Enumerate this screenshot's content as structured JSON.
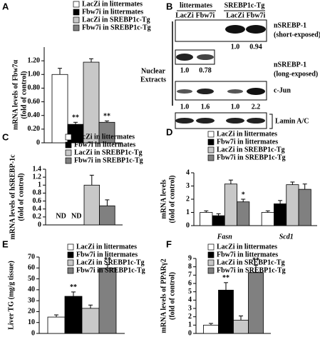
{
  "chart_data": [
    {
      "type": "bar",
      "label": "A",
      "ylabel": [
        "mRNA levels of Fbw7α",
        "(fold of control)"
      ],
      "ylim": [
        0,
        1.4
      ],
      "yticks": [
        0,
        {
          "value": 0.2,
          "label": "0.20"
        },
        {
          "value": 0.4,
          "label": "0.40"
        },
        {
          "value": 0.6,
          "label": "0.60"
        },
        {
          "value": 0.8,
          "label": "0.80"
        },
        {
          "value": 1.0,
          "label": "1.00"
        },
        {
          "value": 1.2,
          "label": "1.20"
        }
      ],
      "series": [
        {
          "name": "LacZi in littermates",
          "color": "#ffffff",
          "values": [
            1.0
          ],
          "errors": [
            0.09
          ]
        },
        {
          "name": "Fbw7i in littermates",
          "color": "#000000",
          "values": [
            0.27
          ],
          "errors": [
            0.03
          ],
          "annotations": [
            "**"
          ]
        },
        {
          "name": "LacZi in SREBP1c-Tg",
          "color": "#c8c8c8",
          "values": [
            1.18
          ],
          "errors": [
            0.05
          ]
        },
        {
          "name": "Fbw7i in SREBP1c-Tg",
          "color": "#808080",
          "values": [
            0.3
          ],
          "errors": [
            0.02
          ],
          "annotations": [
            "**"
          ]
        }
      ]
    },
    {
      "type": "bar",
      "label": "C",
      "ylabel": [
        "mRNA levels of hSREBP-1c",
        "(fold of control)"
      ],
      "ylim": [
        0,
        1.4
      ],
      "yticks": [
        0,
        0.2,
        0.4,
        0.6,
        0.8,
        1,
        1.2,
        1.4
      ],
      "series": [
        {
          "name": "LacZi in littermates",
          "color": "#ffffff",
          "values": [
            null
          ],
          "value_labels": [
            "ND"
          ]
        },
        {
          "name": "Fbw7i in littermates",
          "color": "#000000",
          "values": [
            null
          ],
          "value_labels": [
            "ND"
          ]
        },
        {
          "name": "LacZi in SREBP1c-Tg",
          "color": "#c8c8c8",
          "values": [
            1.0
          ],
          "errors": [
            0.25
          ]
        },
        {
          "name": "Fbw7i in SREBP1c-Tg",
          "color": "#808080",
          "values": [
            0.48
          ],
          "errors": [
            0.15
          ]
        }
      ]
    },
    {
      "type": "bar",
      "label": "D",
      "ylabel": [
        "mRNA levels",
        "(fold of control)"
      ],
      "ylim": [
        0,
        4
      ],
      "yticks": [
        0,
        1,
        2,
        3,
        4
      ],
      "categories": [
        "Fasn",
        "Scd1"
      ],
      "series": [
        {
          "name": "LacZi in littermates",
          "color": "#ffffff",
          "values": [
            1.0,
            1.0
          ],
          "errors": [
            0.12,
            0.12
          ]
        },
        {
          "name": "Fbw7i in littermates",
          "color": "#000000",
          "values": [
            0.75,
            1.65
          ],
          "errors": [
            0.15,
            0.25
          ]
        },
        {
          "name": "LacZi in SREBP1c-Tg",
          "color": "#c8c8c8",
          "values": [
            3.15,
            3.1
          ],
          "errors": [
            0.3,
            0.2
          ]
        },
        {
          "name": "Fbw7i in SREBP1c-Tg",
          "color": "#808080",
          "values": [
            1.8,
            2.75
          ],
          "errors": [
            0.2,
            0.4
          ],
          "annotations": [
            "*",
            null
          ]
        }
      ]
    },
    {
      "type": "bar",
      "label": "E",
      "ylabel": [
        "Liver TG (mg/g tissue)"
      ],
      "ylim": [
        0,
        70
      ],
      "yticks": [
        0,
        10,
        20,
        30,
        40,
        50,
        60,
        70
      ],
      "series": [
        {
          "name": "LacZi in littermates",
          "color": "#ffffff",
          "values": [
            15
          ],
          "errors": [
            2
          ]
        },
        {
          "name": "Fbw7i in littermates",
          "color": "#000000",
          "values": [
            34
          ],
          "errors": [
            4
          ],
          "annotations": [
            "**"
          ]
        },
        {
          "name": "LacZi in SREBP1c-Tg",
          "color": "#c8c8c8",
          "values": [
            23
          ],
          "errors": [
            3
          ]
        },
        {
          "name": "Fbw7i in SREBP1c-Tg",
          "color": "#808080",
          "values": [
            60
          ],
          "errors": [
            3
          ],
          "annotations": [
            "**"
          ]
        }
      ]
    },
    {
      "type": "bar",
      "label": "F",
      "ylabel": [
        "mRNA levels of PPARγ2",
        "(fold of control)"
      ],
      "ylim": [
        0,
        9
      ],
      "yticks": [
        0,
        1,
        2,
        3,
        4,
        5,
        6,
        7,
        8,
        9
      ],
      "series": [
        {
          "name": "LacZi in littermates",
          "color": "#ffffff",
          "values": [
            1.0
          ],
          "errors": [
            0.2
          ]
        },
        {
          "name": "Fbw7i in littermates",
          "color": "#000000",
          "values": [
            5.2
          ],
          "errors": [
            0.9
          ],
          "annotations": [
            "**"
          ]
        },
        {
          "name": "LacZi in SREBP1c-Tg",
          "color": "#c8c8c8",
          "values": [
            1.6
          ],
          "errors": [
            0.5
          ]
        },
        {
          "name": "Fbw7i in SREBP1c-Tg",
          "color": "#808080",
          "values": [
            7.3
          ],
          "errors": [
            0.9
          ],
          "annotations": [
            "**"
          ]
        }
      ]
    }
  ],
  "blot": {
    "label": "B",
    "groups": [
      "littermates",
      "SREBP1c-Tg"
    ],
    "lanes": [
      "LacZi",
      "Fbw7i",
      "LacZi",
      "Fbw7i"
    ],
    "section": [
      "Nuclear",
      "Extracts"
    ],
    "rows": [
      {
        "label": [
          "nSREBP-1",
          "(short-exposed)"
        ],
        "quant": [
          "1.0",
          "0.94"
        ]
      },
      {
        "label": [
          "nSREBP-1",
          "(long-exposed)"
        ],
        "quant": [
          "1.0",
          "0.78"
        ]
      },
      {
        "label": [
          "c-Jun"
        ],
        "quant": [
          "1.0",
          "1.6",
          "1.0",
          "2.2"
        ]
      },
      {
        "label": [
          "Lamin A/C"
        ]
      }
    ]
  }
}
